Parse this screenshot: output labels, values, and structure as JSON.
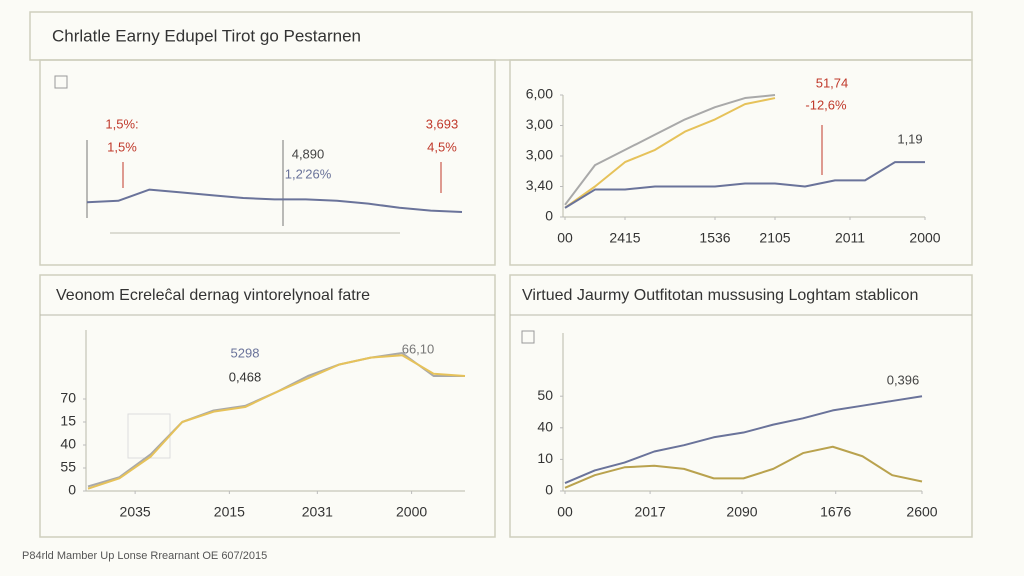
{
  "header": {
    "title": "Chrlatle Earny Edupel Tirot go Pestarnen"
  },
  "footer": {
    "text": "P84rld Mamber Up Lonse Rrearnant OE 607/2015"
  },
  "chart_data": [
    {
      "type": "line",
      "x": [
        0,
        1,
        2,
        3,
        4,
        5,
        6,
        7,
        8,
        9,
        10,
        11,
        12
      ],
      "xlim": [
        0,
        12
      ],
      "ylim": [
        0,
        10
      ],
      "annotations": [
        "1,5%:",
        "1,5%",
        "4,890",
        "1,2′26%",
        "3,693",
        "4,5%"
      ],
      "series": [
        {
          "color": "#6a739a",
          "values": [
            2.7,
            2.8,
            3.6,
            3.4,
            3.2,
            3.0,
            2.9,
            2.9,
            2.8,
            2.6,
            2.3,
            2.1,
            2.0
          ]
        }
      ]
    },
    {
      "type": "line",
      "x": [
        0,
        1,
        2,
        3,
        4,
        5,
        6,
        7,
        8,
        9,
        10,
        11,
        12
      ],
      "xlim": [
        0,
        12
      ],
      "ylim": [
        0,
        4
      ],
      "xticks": [
        {
          "value": 0,
          "label": "00"
        },
        {
          "value": 2,
          "label": "2415"
        },
        {
          "value": 5,
          "label": "1536"
        },
        {
          "value": 7,
          "label": "2105"
        },
        {
          "value": 9.5,
          "label": "2011"
        },
        {
          "value": 12,
          "label": "2000"
        }
      ],
      "yticks": [
        {
          "value": 4,
          "label": "6,00"
        },
        {
          "value": 3,
          "label": "3,00"
        },
        {
          "value": 2,
          "label": "3,00"
        },
        {
          "value": 1,
          "label": "3,40"
        },
        0
      ],
      "annotations": [
        "51,74",
        "-12,6%",
        "1,19"
      ],
      "series": [
        {
          "color": "#a9a9a9",
          "values": [
            0.4,
            1.7,
            2.2,
            2.7,
            3.2,
            3.6,
            3.9,
            4.0,
            null,
            null,
            null,
            null,
            null
          ]
        },
        {
          "color": "#e6c25a",
          "values": [
            0.3,
            1.0,
            1.8,
            2.2,
            2.8,
            3.2,
            3.7,
            3.9,
            null,
            null,
            null,
            null,
            null
          ]
        },
        {
          "color": "#6a739a",
          "values": [
            0.3,
            0.9,
            0.9,
            1.0,
            1.0,
            1.0,
            1.1,
            1.1,
            1.0,
            1.2,
            1.2,
            1.8,
            1.8
          ]
        }
      ]
    },
    {
      "type": "line",
      "title": "Veonom Ecreleĉal dernag vintorelynoal fatre",
      "x": [
        0,
        1,
        2,
        3,
        4,
        5,
        6,
        7,
        8,
        9,
        10,
        11,
        12
      ],
      "xlim": [
        0,
        12
      ],
      "ylim": [
        0,
        7
      ],
      "xticks": [
        {
          "value": 1.5,
          "label": "2035"
        },
        {
          "value": 4.5,
          "label": "2015"
        },
        {
          "value": 7.3,
          "label": "2031"
        },
        {
          "value": 10.3,
          "label": "2000"
        }
      ],
      "yticks": [
        {
          "value": 4,
          "label": "70"
        },
        {
          "value": 3,
          "label": "15"
        },
        {
          "value": 2,
          "label": "40"
        },
        {
          "value": 1,
          "label": "55"
        },
        0
      ],
      "annotations": [
        "5298",
        "0,468",
        "66,10"
      ],
      "series": [
        {
          "color": "#a9a9a9",
          "values": [
            0.2,
            0.6,
            1.6,
            3.0,
            3.5,
            3.7,
            4.3,
            5.0,
            5.5,
            5.8,
            6.0,
            5.0,
            5.0
          ]
        },
        {
          "color": "#e6c25a",
          "values": [
            0.1,
            0.55,
            1.5,
            3.0,
            3.45,
            3.65,
            4.3,
            4.9,
            5.5,
            5.8,
            5.9,
            5.1,
            5.0
          ]
        }
      ]
    },
    {
      "type": "line",
      "title": "Virtued Jaurmy Outfitotan mussusing Loghtam stablicon",
      "x": [
        0,
        1,
        2,
        3,
        4,
        5,
        6,
        7,
        8,
        9,
        10,
        11,
        12
      ],
      "xlim": [
        0,
        12
      ],
      "ylim": [
        0,
        5
      ],
      "xticks": [
        {
          "value": 0,
          "label": "00"
        },
        {
          "value": 2.86,
          "label": "2017"
        },
        {
          "value": 5.95,
          "label": "2090"
        },
        {
          "value": 9.1,
          "label": "1676"
        },
        {
          "value": 12,
          "label": "2600"
        }
      ],
      "yticks": [
        {
          "value": 3,
          "label": "50"
        },
        {
          "value": 2,
          "label": "40"
        },
        {
          "value": 1,
          "label": "10"
        },
        0
      ],
      "annotations": [
        "0,396"
      ],
      "series": [
        {
          "color": "#6a739a",
          "values": [
            0.25,
            0.65,
            0.9,
            1.25,
            1.45,
            1.7,
            1.85,
            2.1,
            2.3,
            2.55,
            2.7,
            2.85,
            3.0
          ]
        },
        {
          "color": "#b9a24e",
          "values": [
            0.1,
            0.5,
            0.75,
            0.8,
            0.7,
            0.4,
            0.4,
            0.7,
            1.2,
            1.4,
            1.1,
            0.5,
            0.3
          ]
        }
      ]
    }
  ]
}
